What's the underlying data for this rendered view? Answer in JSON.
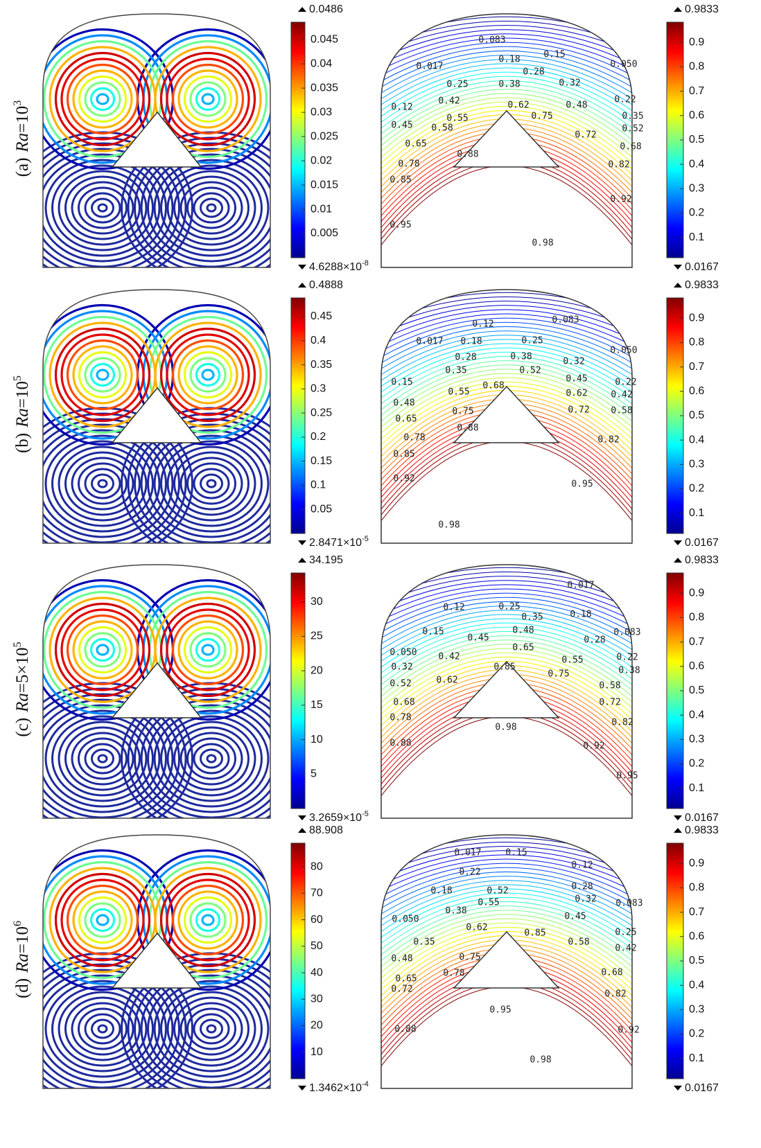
{
  "panels": [
    {
      "label": {
        "letter": "(a)",
        "symbol": "Ra",
        "value": "=10",
        "exponent": "3"
      },
      "velocity_colorbar": {
        "max": 0.0486,
        "min": {
          "value": 4.6288e-08,
          "label": "4.6288×10",
          "exponent": "-8"
        },
        "ticks": [
          0.005,
          0.01,
          0.015,
          0.02,
          0.025,
          0.03,
          0.035,
          0.04,
          0.045
        ]
      },
      "isotherm_labels": [
        "0.083",
        "0.18",
        "0.15",
        "0.017",
        "0.28",
        "0.050",
        "0.25",
        "0.38",
        "0.32",
        "0.42",
        "0.22",
        "0.12",
        "0.62",
        "0.48",
        "0.55",
        "0.75",
        "0.35",
        "0.45",
        "0.58",
        "0.52",
        "0.72",
        "0.65",
        "0.68",
        "0.88",
        "0.78",
        "0.82",
        "0.85",
        "0.92",
        "0.95",
        "0.98"
      ],
      "temperature_colorbar": {
        "max": 0.9833,
        "min": 0.0167,
        "ticks": [
          0.1,
          0.2,
          0.3,
          0.4,
          0.5,
          0.6,
          0.7,
          0.8,
          0.9
        ]
      }
    },
    {
      "label": {
        "letter": "(b)",
        "symbol": "Ra",
        "value": "=10",
        "exponent": "5"
      },
      "velocity_colorbar": {
        "max": 0.4888,
        "min": {
          "value": 2.8471e-05,
          "label": "2.8471×10",
          "exponent": "-5"
        },
        "ticks": [
          0.05,
          0.1,
          0.15,
          0.2,
          0.25,
          0.3,
          0.35,
          0.4,
          0.45
        ]
      },
      "isotherm_labels": [
        "0.12",
        "0.083",
        "0.017",
        "0.18",
        "0.25",
        "0.050",
        "0.28",
        "0.38",
        "0.32",
        "0.35",
        "0.52",
        "0.45",
        "0.15",
        "0.68",
        "0.22",
        "0.55",
        "0.62",
        "0.42",
        "0.48",
        "0.75",
        "0.72",
        "0.58",
        "0.88",
        "0.65",
        "0.78",
        "0.82",
        "0.85",
        "0.92",
        "0.95",
        "0.98"
      ],
      "temperature_colorbar": {
        "max": 0.9833,
        "min": 0.0167,
        "ticks": [
          0.1,
          0.2,
          0.3,
          0.4,
          0.5,
          0.6,
          0.7,
          0.8,
          0.9
        ]
      }
    },
    {
      "label": {
        "letter": "(c)",
        "symbol": "Ra",
        "value": "=5×10",
        "exponent": "5"
      },
      "velocity_colorbar": {
        "max": 34.195,
        "min": {
          "value": 3.2659e-05,
          "label": "3.2659×10",
          "exponent": "-5"
        },
        "ticks": [
          5,
          10,
          15,
          20,
          25,
          30
        ]
      },
      "isotherm_labels": [
        "0.017",
        "0.12",
        "0.25",
        "0.35",
        "0.18",
        "0.15",
        "0.45",
        "0.48",
        "0.28",
        "0.083",
        "0.050",
        "0.42",
        "0.65",
        "0.55",
        "0.22",
        "0.32",
        "0.85",
        "0.75",
        "0.38",
        "0.52",
        "0.62",
        "0.58",
        "0.68",
        "0.72",
        "0.78",
        "0.98",
        "0.82",
        "0.88",
        "0.92",
        "0.95"
      ],
      "temperature_colorbar": {
        "max": 0.9833,
        "min": 0.0167,
        "ticks": [
          0.1,
          0.2,
          0.3,
          0.4,
          0.5,
          0.6,
          0.7,
          0.8,
          0.9
        ]
      }
    },
    {
      "label": {
        "letter": "(d)",
        "symbol": "Ra",
        "value": "=10",
        "exponent": "6"
      },
      "velocity_colorbar": {
        "max": 88.908,
        "min": {
          "value": 0.00013462,
          "label": "1.3462×10",
          "exponent": "-4"
        },
        "ticks": [
          10,
          20,
          30,
          40,
          50,
          60,
          70,
          80
        ]
      },
      "isotherm_labels": [
        "0.017",
        "0.15",
        "0.12",
        "0.22",
        "0.18",
        "0.52",
        "0.28",
        "0.55",
        "0.32",
        "0.083",
        "0.38",
        "0.45",
        "0.050",
        "0.62",
        "0.85",
        "0.25",
        "0.35",
        "0.58",
        "0.42",
        "0.75",
        "0.48",
        "0.78",
        "0.68",
        "0.65",
        "0.72",
        "0.82",
        "0.95",
        "0.88",
        "0.92",
        "0.98"
      ],
      "temperature_colorbar": {
        "max": 0.9833,
        "min": 0.0167,
        "ticks": [
          0.1,
          0.2,
          0.3,
          0.4,
          0.5,
          0.6,
          0.7,
          0.8,
          0.9
        ]
      }
    }
  ]
}
